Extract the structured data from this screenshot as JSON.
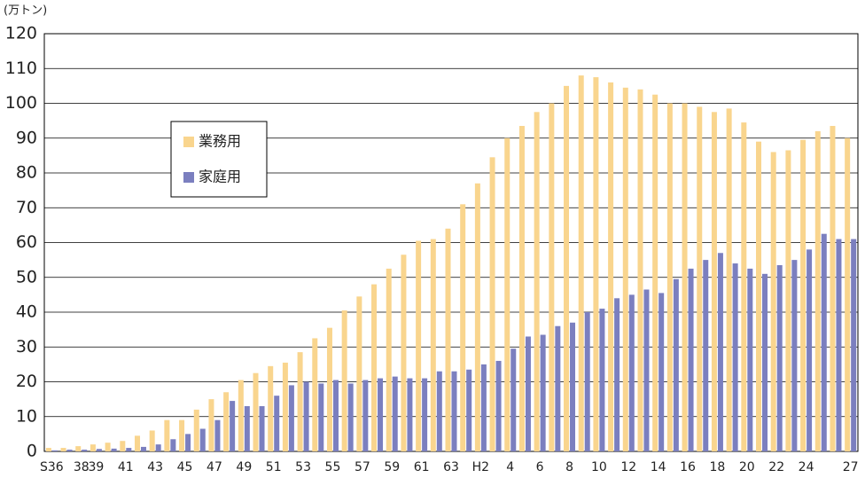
{
  "chart_data": {
    "type": "bar",
    "y_label": "(万トン)",
    "categories": [
      "S36",
      null,
      "38",
      "39",
      null,
      "41",
      null,
      "43",
      null,
      "45",
      null,
      "47",
      null,
      "49",
      null,
      "51",
      null,
      "53",
      null,
      "55",
      null,
      "57",
      null,
      "59",
      null,
      "61",
      null,
      "63",
      null,
      "H2",
      null,
      "4",
      null,
      "6",
      null,
      "8",
      null,
      "10",
      null,
      "12",
      null,
      "14",
      null,
      "16",
      null,
      "18",
      null,
      "20",
      null,
      "22",
      null,
      "24",
      null,
      null,
      "27"
    ],
    "series": [
      {
        "name": "業務用",
        "color": "#f9d58e",
        "values": [
          1,
          1,
          1.5,
          2,
          2.5,
          3,
          4.5,
          6,
          9,
          9,
          12,
          15,
          17,
          20.5,
          22.5,
          24.5,
          25.5,
          28.5,
          32.5,
          35.5,
          40.5,
          44.5,
          48,
          52.5,
          56.5,
          60.5,
          61,
          64,
          71,
          77,
          84.5,
          90,
          93.5,
          97.5,
          100,
          105,
          108,
          107.5,
          106,
          104.5,
          104,
          102.5,
          100,
          100,
          99,
          97.5,
          98.5,
          94.5,
          89,
          86,
          86.5,
          89.5,
          92,
          93.5,
          90
        ]
      },
      {
        "name": "家庭用",
        "color": "#7b7fbf",
        "values": [
          0.3,
          0.5,
          0.5,
          0.7,
          0.8,
          1,
          1.3,
          2,
          3.5,
          5,
          6.5,
          9,
          14.5,
          13,
          13,
          16,
          19,
          20,
          19.5,
          20.5,
          19.5,
          20.5,
          21,
          21.5,
          21,
          21,
          23,
          23,
          23.5,
          25,
          26,
          29.5,
          33,
          33.5,
          36,
          37,
          40,
          41,
          44,
          45,
          46.5,
          45.5,
          49.5,
          52.5,
          55,
          57,
          54,
          52.5,
          51,
          53.5,
          55,
          58,
          62.5,
          61,
          61
        ]
      }
    ],
    "ylim": [
      0,
      120
    ],
    "yticks": [
      0,
      10,
      20,
      30,
      40,
      50,
      60,
      70,
      80,
      90,
      100,
      110,
      120
    ],
    "grid": true
  }
}
